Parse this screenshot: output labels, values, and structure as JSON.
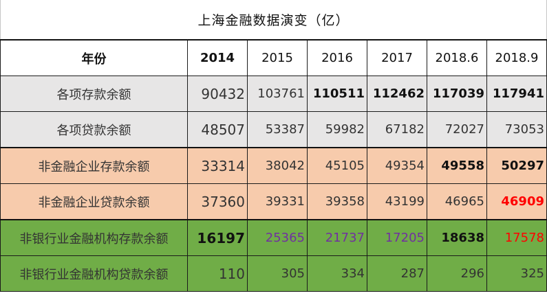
{
  "title": "上海金融数据演变（亿）",
  "headers": [
    "年份",
    "2014",
    "2015",
    "2016",
    "2017",
    "2018.6",
    "2018.9"
  ],
  "rows": [
    {
      "label": "各项存款余额",
      "values": [
        "90432",
        "103761",
        "110511",
        "112462",
        "117039",
        "117941"
      ]
    },
    {
      "label": "各项贷款余额",
      "values": [
        "48507",
        "53387",
        "59982",
        "67182",
        "72027",
        "73053"
      ]
    },
    {
      "label": "非金融企业存款余额",
      "values": [
        "33314",
        "38042",
        "45105",
        "49354",
        "49558",
        "50297"
      ]
    },
    {
      "label": "非金融企业贷款余额",
      "values": [
        "37360",
        "39331",
        "39358",
        "43199",
        "46965",
        "46909"
      ]
    },
    {
      "label": "非银行业金融机构存款余额",
      "values": [
        "16197",
        "25365",
        "21737",
        "17205",
        "18638",
        "17578"
      ]
    },
    {
      "label": "非银行业金融机构贷款余额",
      "values": [
        "110",
        "305",
        "334",
        "287",
        "296",
        "325"
      ]
    }
  ],
  "colors": {
    "grey_band": "#e7e6e6",
    "peach_band": "#f7cbac",
    "green_band": "#70ad47",
    "highlight_red": "#ff0000",
    "highlight_purple": "#7030a0"
  }
}
